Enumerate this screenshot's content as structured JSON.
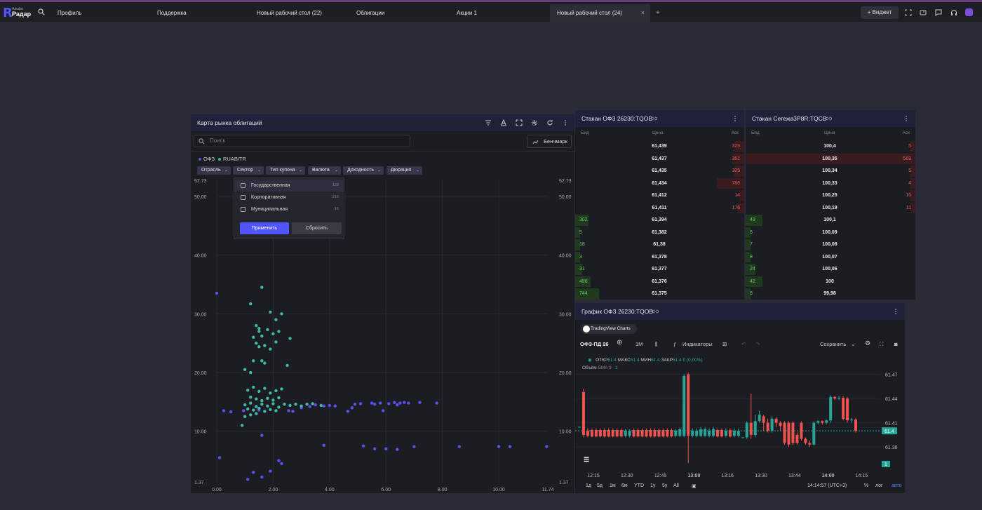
{
  "app": {
    "logo_small": "Альфа",
    "logo_name": "Радар",
    "logo_letter": "R"
  },
  "tabs": [
    {
      "label": "Профиль"
    },
    {
      "label": "Поддержка"
    },
    {
      "label": "Новый рабочий стол (22)"
    },
    {
      "label": "Облигации"
    },
    {
      "label": "Акции 1"
    },
    {
      "label": "Новый рабочий стол (24)",
      "close": "×"
    }
  ],
  "topbar": {
    "add_tab": "+",
    "widget_label": "+   Виджет"
  },
  "bond_map": {
    "title": "Карта рынка облигаций",
    "search_placeholder": "Поиск",
    "benchmark_label": "Бенчмарк",
    "legend": [
      {
        "label": "ОФЗ",
        "color": "#5a4ff0"
      },
      {
        "label": "RUABITR",
        "color": "#3fb8a8"
      }
    ],
    "filters": [
      "Отрасль",
      "Сектор",
      "Тип купона",
      "Валюта",
      "Доходность",
      "Дюрация"
    ],
    "sector_dropdown": {
      "items": [
        {
          "label": "Государственная",
          "count": "122"
        },
        {
          "label": "Корпоративная",
          "count": "210"
        },
        {
          "label": "Муниципальная",
          "count": "16"
        }
      ],
      "apply_label": "Применить",
      "reset_label": "Сбросить"
    }
  },
  "chart_data": {
    "type": "scatter",
    "title": "",
    "xlabel": "",
    "ylabel": "",
    "xlim": [
      0,
      11.74
    ],
    "ylim": [
      1.37,
      52.73
    ],
    "x_ticks": [
      "0.00",
      "2.00",
      "4.00",
      "6.00",
      "8.00",
      "10.00",
      "11.74"
    ],
    "y_ticks": [
      "52.73",
      "50.00",
      "40.00",
      "30.00",
      "20.00",
      "10.00",
      "1.37"
    ],
    "grid": true,
    "series": [
      {
        "name": "ОФЗ",
        "color": "#5a4ff0",
        "points": [
          [
            0.0,
            33.5
          ],
          [
            0.1,
            5.5
          ],
          [
            0.25,
            13.5
          ],
          [
            0.5,
            13.3
          ],
          [
            0.95,
            13.5
          ],
          [
            1.1,
            1.8
          ],
          [
            1.3,
            3.0
          ],
          [
            1.6,
            2.2
          ],
          [
            1.9,
            3.2
          ],
          [
            2.2,
            5.0
          ],
          [
            2.3,
            4.5
          ],
          [
            1.5,
            13.6
          ],
          [
            2.55,
            13.5
          ],
          [
            2.7,
            13.4
          ],
          [
            3.0,
            14.0
          ],
          [
            3.3,
            14.2
          ],
          [
            3.5,
            14.5
          ],
          [
            3.8,
            14.3
          ],
          [
            4.0,
            14.4
          ],
          [
            4.2,
            14.3
          ],
          [
            4.8,
            14.0
          ],
          [
            4.9,
            14.6
          ],
          [
            5.1,
            14.7
          ],
          [
            5.5,
            14.8
          ],
          [
            5.6,
            14.6
          ],
          [
            5.8,
            14.8
          ],
          [
            6.1,
            14.7
          ],
          [
            6.3,
            14.9
          ],
          [
            6.4,
            14.5
          ],
          [
            6.5,
            14.8
          ],
          [
            6.65,
            14.9
          ],
          [
            6.8,
            14.8
          ],
          [
            7.2,
            14.9
          ],
          [
            7.8,
            14.8
          ],
          [
            3.8,
            7.6
          ],
          [
            5.2,
            7.5
          ],
          [
            5.6,
            7.0
          ],
          [
            6.0,
            7.0
          ],
          [
            6.4,
            6.9
          ],
          [
            7.0,
            7.4
          ],
          [
            8.6,
            7.4
          ],
          [
            10.0,
            7.4
          ],
          [
            10.4,
            7.4
          ],
          [
            11.7,
            7.4
          ],
          [
            1.6,
            9.3
          ],
          [
            5.9,
            13.5
          ],
          [
            4.65,
            13.4
          ]
        ]
      },
      {
        "name": "RUABITR",
        "color": "#3fb8a8",
        "points": [
          [
            1.0,
            20.5
          ],
          [
            1.2,
            20.0
          ],
          [
            1.3,
            22.0
          ],
          [
            1.2,
            31.7
          ],
          [
            1.6,
            34.5
          ],
          [
            1.5,
            27.5
          ],
          [
            1.4,
            28.0
          ],
          [
            1.5,
            27.0
          ],
          [
            1.6,
            26.2
          ],
          [
            1.8,
            27.3
          ],
          [
            2.0,
            26.6
          ],
          [
            2.2,
            27.0
          ],
          [
            2.3,
            30.0
          ],
          [
            1.9,
            30.3
          ],
          [
            1.3,
            26.0
          ],
          [
            1.4,
            25.0
          ],
          [
            1.5,
            24.4
          ],
          [
            1.7,
            24.6
          ],
          [
            1.9,
            24.0
          ],
          [
            2.1,
            25.2
          ],
          [
            1.6,
            22.0
          ],
          [
            1.7,
            21.6
          ],
          [
            2.5,
            21.2
          ],
          [
            1.1,
            17.0
          ],
          [
            1.3,
            17.5
          ],
          [
            1.5,
            16.8
          ],
          [
            1.7,
            17.3
          ],
          [
            1.9,
            16.5
          ],
          [
            2.1,
            16.9
          ],
          [
            2.3,
            17.2
          ],
          [
            1.2,
            15.8
          ],
          [
            1.4,
            15.5
          ],
          [
            1.6,
            15.2
          ],
          [
            1.8,
            15.6
          ],
          [
            2.0,
            15.3
          ],
          [
            2.2,
            15.7
          ],
          [
            1.0,
            14.5
          ],
          [
            1.2,
            14.8
          ],
          [
            1.4,
            14.2
          ],
          [
            1.6,
            14.6
          ],
          [
            1.8,
            14.3
          ],
          [
            2.0,
            14.7
          ],
          [
            2.2,
            14.1
          ],
          [
            2.4,
            14.6
          ],
          [
            2.6,
            14.4
          ],
          [
            2.8,
            14.6
          ],
          [
            3.0,
            14.3
          ],
          [
            3.2,
            14.6
          ],
          [
            3.4,
            14.7
          ],
          [
            3.7,
            14.4
          ],
          [
            1.1,
            13.8
          ],
          [
            1.3,
            13.6
          ],
          [
            1.5,
            13.9
          ],
          [
            1.7,
            13.4
          ],
          [
            1.9,
            13.7
          ],
          [
            2.1,
            13.5
          ],
          [
            1.0,
            12.5
          ],
          [
            1.2,
            12.8
          ],
          [
            1.4,
            13.0
          ],
          [
            0.9,
            11.0
          ],
          [
            2.6,
            25.8
          ],
          [
            2.1,
            29.0
          ]
        ]
      }
    ]
  },
  "book1": {
    "title": "Стакан ОФЗ 26230:TQOB",
    "col_bid": "Бид",
    "col_price": "Цена",
    "col_ask": "Аск",
    "rows": [
      {
        "bid": "",
        "price": "61,439",
        "ask": "323",
        "askbar": 0.06
      },
      {
        "bid": "",
        "price": "61,437",
        "ask": "361",
        "askbar": 0.07
      },
      {
        "bid": "",
        "price": "61,435",
        "ask": "305",
        "askbar": 0.06
      },
      {
        "bid": "",
        "price": "61,434",
        "ask": "786",
        "askbar": 0.16
      },
      {
        "bid": "",
        "price": "61,412",
        "ask": "14",
        "askbar": 0.03
      },
      {
        "bid": "",
        "price": "61,411",
        "ask": "176",
        "askbar": 0.04
      },
      {
        "bid": "302",
        "price": "61,394",
        "ask": "",
        "bidbar": 0.08
      },
      {
        "bid": "5",
        "price": "61,382",
        "ask": "",
        "bidbar": 0.03
      },
      {
        "bid": "18",
        "price": "61,38",
        "ask": "",
        "bidbar": 0.03
      },
      {
        "bid": "3",
        "price": "61,378",
        "ask": "",
        "bidbar": 0.03
      },
      {
        "bid": "31",
        "price": "61,377",
        "ask": "",
        "bidbar": 0.04
      },
      {
        "bid": "486",
        "price": "61,376",
        "ask": "",
        "bidbar": 0.09
      },
      {
        "bid": "744",
        "price": "61,375",
        "ask": "",
        "bidbar": 0.14
      }
    ]
  },
  "book2": {
    "title": "Стакан Сегежа3Р8R:TQCB",
    "col_bid": "Бид",
    "col_price": "Цена",
    "col_ask": "Аск",
    "rows": [
      {
        "bid": "",
        "price": "100,4",
        "ask": "5",
        "askbar": 0.03
      },
      {
        "bid": "",
        "price": "100,35",
        "ask": "569",
        "askbar": 1.0
      },
      {
        "bid": "",
        "price": "100,34",
        "ask": "5",
        "askbar": 0.03
      },
      {
        "bid": "",
        "price": "100,33",
        "ask": "4",
        "askbar": 0.03
      },
      {
        "bid": "",
        "price": "100,25",
        "ask": "16",
        "askbar": 0.03
      },
      {
        "bid": "",
        "price": "100,19",
        "ask": "11",
        "askbar": 0.03
      },
      {
        "bid": "43",
        "price": "100,1",
        "ask": "",
        "bidbar": 0.1
      },
      {
        "bid": "6",
        "price": "100,09",
        "ask": "",
        "bidbar": 0.03
      },
      {
        "bid": "7",
        "price": "100,08",
        "ask": "",
        "bidbar": 0.03
      },
      {
        "bid": "8",
        "price": "100,07",
        "ask": "",
        "bidbar": 0.03
      },
      {
        "bid": "24",
        "price": "100,06",
        "ask": "",
        "bidbar": 0.06
      },
      {
        "bid": "42",
        "price": "100",
        "ask": "",
        "bidbar": 0.1
      },
      {
        "bid": "8",
        "price": "99,98",
        "ask": "",
        "bidbar": 0.03
      }
    ]
  },
  "price_chart": {
    "title": "График ОФЗ 26230:TQOB",
    "tv_toggle": "TradingView Charts",
    "symbol": "ОФЗ-ПД 26",
    "interval": "1М",
    "indicators_label": "Индикаторы",
    "save_label": "Сохранить",
    "ohlc_open_label": "ОТКР",
    "ohlc_open": "61.4",
    "ohlc_high_label": "МАКС",
    "ohlc_high": "61.4",
    "ohlc_low_label": "МИН",
    "ohlc_low": "61.4",
    "ohlc_close_label": "ЗАКР",
    "ohlc_close": "61.4",
    "ohlc_change": "0 (0.00%)",
    "volume_label": "Объём",
    "volume_sma": "SMA 9",
    "volume_value": "1",
    "y_ticks": [
      "61.47",
      "61.44",
      "61.41",
      "61.38"
    ],
    "last_price": "61.4",
    "last_volume": "1",
    "x_ticks": [
      "12:15",
      "12:30",
      "12:45",
      "13:00",
      "13:16",
      "13:30",
      "13:44",
      "14:00",
      "14:15"
    ],
    "ranges": [
      "1д",
      "5д",
      "1м",
      "6м",
      "YTD",
      "1у",
      "5у",
      "All"
    ],
    "clock": "14:14:57 (UTC+3)",
    "percent_label": "%",
    "log_label": "лог",
    "auto_label": "авто",
    "up_color": "#26a69a",
    "down_color": "#ef5350",
    "candles": [
      {
        "o": 61.405,
        "c": 61.405,
        "h": 61.405,
        "l": 61.405
      },
      {
        "o": 61.448,
        "c": 61.395,
        "h": 61.452,
        "l": 61.392
      },
      {
        "o": 61.4,
        "c": 61.394,
        "h": 61.403,
        "l": 61.392
      },
      {
        "o": 61.401,
        "c": 61.393,
        "h": 61.403,
        "l": 61.392
      },
      {
        "o": 61.401,
        "c": 61.393,
        "h": 61.403,
        "l": 61.392
      },
      {
        "o": 61.401,
        "c": 61.393,
        "h": 61.403,
        "l": 61.392
      },
      {
        "o": 61.401,
        "c": 61.393,
        "h": 61.403,
        "l": 61.392
      },
      {
        "o": 61.401,
        "c": 61.393,
        "h": 61.403,
        "l": 61.392
      },
      {
        "o": 61.401,
        "c": 61.393,
        "h": 61.403,
        "l": 61.392
      },
      {
        "o": 61.401,
        "c": 61.393,
        "h": 61.403,
        "l": 61.392
      },
      {
        "o": 61.401,
        "c": 61.393,
        "h": 61.403,
        "l": 61.392
      },
      {
        "o": 61.394,
        "c": 61.4,
        "h": 61.402,
        "l": 61.392
      },
      {
        "o": 61.394,
        "c": 61.4,
        "h": 61.402,
        "l": 61.392
      },
      {
        "o": 61.401,
        "c": 61.393,
        "h": 61.403,
        "l": 61.392
      },
      {
        "o": 61.401,
        "c": 61.393,
        "h": 61.403,
        "l": 61.392
      },
      {
        "o": 61.401,
        "c": 61.393,
        "h": 61.403,
        "l": 61.392
      },
      {
        "o": 61.401,
        "c": 61.393,
        "h": 61.403,
        "l": 61.392
      },
      {
        "o": 61.401,
        "c": 61.393,
        "h": 61.403,
        "l": 61.392
      },
      {
        "o": 61.401,
        "c": 61.393,
        "h": 61.403,
        "l": 61.392
      },
      {
        "o": 61.401,
        "c": 61.393,
        "h": 61.403,
        "l": 61.392
      },
      {
        "o": 61.401,
        "c": 61.393,
        "h": 61.403,
        "l": 61.392
      },
      {
        "o": 61.401,
        "c": 61.393,
        "h": 61.403,
        "l": 61.392
      },
      {
        "o": 61.401,
        "c": 61.393,
        "h": 61.403,
        "l": 61.392
      },
      {
        "o": 61.394,
        "c": 61.4,
        "h": 61.402,
        "l": 61.392
      },
      {
        "o": 61.394,
        "c": 61.402,
        "h": 61.404,
        "l": 61.392
      },
      {
        "o": 61.394,
        "c": 61.468,
        "h": 61.47,
        "l": 61.392
      },
      {
        "o": 61.47,
        "c": 61.394,
        "h": 61.472,
        "l": 61.36
      },
      {
        "o": 61.394,
        "c": 61.4,
        "h": 61.403,
        "l": 61.392
      },
      {
        "o": 61.394,
        "c": 61.4,
        "h": 61.403,
        "l": 61.392
      },
      {
        "o": 61.394,
        "c": 61.402,
        "h": 61.405,
        "l": 61.392
      },
      {
        "o": 61.394,
        "c": 61.402,
        "h": 61.405,
        "l": 61.392
      },
      {
        "o": 61.394,
        "c": 61.4,
        "h": 61.403,
        "l": 61.392
      },
      {
        "o": 61.394,
        "c": 61.402,
        "h": 61.405,
        "l": 61.392
      },
      {
        "o": 61.401,
        "c": 61.393,
        "h": 61.403,
        "l": 61.392
      },
      {
        "o": 61.401,
        "c": 61.393,
        "h": 61.403,
        "l": 61.392
      },
      {
        "o": 61.394,
        "c": 61.4,
        "h": 61.403,
        "l": 61.392
      },
      {
        "o": 61.401,
        "c": 61.393,
        "h": 61.403,
        "l": 61.392
      },
      {
        "o": 61.394,
        "c": 61.4,
        "h": 61.403,
        "l": 61.392
      },
      {
        "o": 61.394,
        "c": 61.4,
        "h": 61.403,
        "l": 61.392
      },
      {
        "o": 61.392,
        "c": 61.392,
        "h": 61.392,
        "l": 61.392
      },
      {
        "o": 61.392,
        "c": 61.41,
        "h": 61.412,
        "l": 61.39
      },
      {
        "o": 61.41,
        "c": 61.395,
        "h": 61.446,
        "l": 61.39
      },
      {
        "o": 61.395,
        "c": 61.412,
        "h": 61.42,
        "l": 61.392
      },
      {
        "o": 61.412,
        "c": 61.42,
        "h": 61.425,
        "l": 61.41
      },
      {
        "o": 61.418,
        "c": 61.41,
        "h": 61.42,
        "l": 61.4
      },
      {
        "o": 61.41,
        "c": 61.4,
        "h": 61.415,
        "l": 61.398
      },
      {
        "o": 61.4,
        "c": 61.415,
        "h": 61.418,
        "l": 61.398
      },
      {
        "o": 61.415,
        "c": 61.41,
        "h": 61.417,
        "l": 61.405
      },
      {
        "o": 61.41,
        "c": 61.406,
        "h": 61.412,
        "l": 61.4
      },
      {
        "o": 61.41,
        "c": 61.385,
        "h": 61.412,
        "l": 61.383
      },
      {
        "o": 61.41,
        "c": 61.383,
        "h": 61.412,
        "l": 61.38
      },
      {
        "o": 61.41,
        "c": 61.385,
        "h": 61.412,
        "l": 61.382
      },
      {
        "o": 61.395,
        "c": 61.385,
        "h": 61.398,
        "l": 61.383
      },
      {
        "o": 61.41,
        "c": 61.39,
        "h": 61.412,
        "l": 61.388
      },
      {
        "o": 61.39,
        "c": 61.385,
        "h": 61.392,
        "l": 61.383
      },
      {
        "o": 61.385,
        "c": 61.383,
        "h": 61.388,
        "l": 61.38
      },
      {
        "o": 61.383,
        "c": 61.41,
        "h": 61.412,
        "l": 61.382
      },
      {
        "o": 61.41,
        "c": 61.412,
        "h": 61.413,
        "l": 61.408
      },
      {
        "o": 61.412,
        "c": 61.41,
        "h": 61.413,
        "l": 61.408
      },
      {
        "o": 61.41,
        "c": 61.413,
        "h": 61.414,
        "l": 61.408
      },
      {
        "o": 61.413,
        "c": 61.442,
        "h": 61.444,
        "l": 61.41
      },
      {
        "o": 61.442,
        "c": 61.44,
        "h": 61.443,
        "l": 61.438
      },
      {
        "o": 61.44,
        "c": 61.441,
        "h": 61.443,
        "l": 61.438
      },
      {
        "o": 61.441,
        "c": 61.415,
        "h": 61.443,
        "l": 61.413
      },
      {
        "o": 61.44,
        "c": 61.413,
        "h": 61.442,
        "l": 61.41
      },
      {
        "o": 61.413,
        "c": 61.414,
        "h": 61.416,
        "l": 61.41
      },
      {
        "o": 61.414,
        "c": 61.4,
        "h": 61.416,
        "l": 61.398
      }
    ]
  }
}
